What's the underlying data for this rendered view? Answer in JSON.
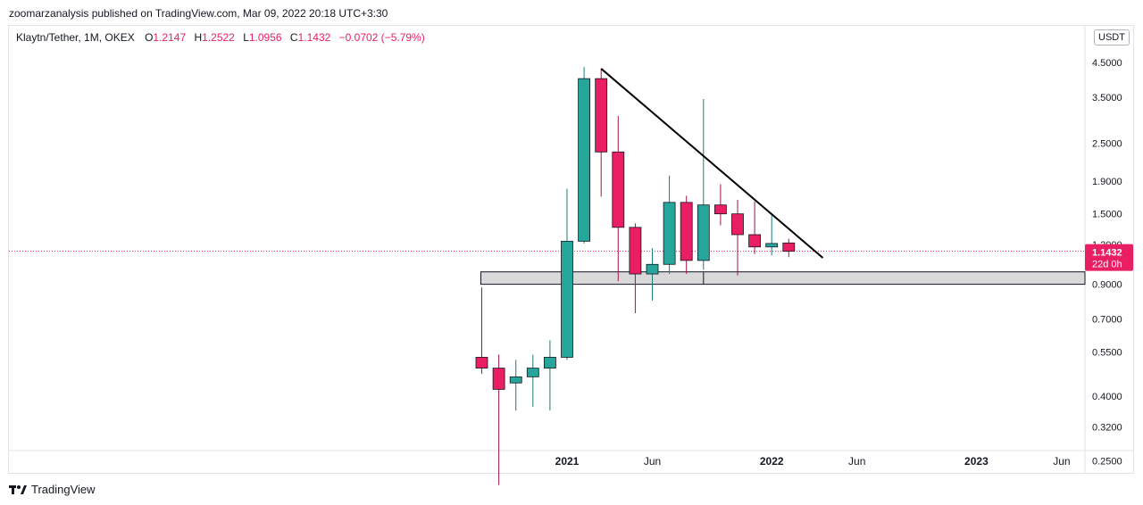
{
  "header": {
    "publish_line": "zoomarzanalysis published on TradingView.com, Mar 09, 2022 20:18 UTC+3:30"
  },
  "legend": {
    "symbol": "Klaytn/Tether, 1M, OKEX",
    "open_label": "O",
    "open": "1.2147",
    "high_label": "H",
    "high": "1.2522",
    "low_label": "L",
    "low": "1.0956",
    "close_label": "C",
    "close": "1.1432",
    "change": "−0.0702 (−5.79%)"
  },
  "currency": "USDT",
  "footer": {
    "brand": "TradingView"
  },
  "colors": {
    "up": "#26a69a",
    "down": "#e91e63",
    "line": "#000000",
    "zone": "#d9d9d9"
  },
  "chart_data": {
    "type": "candlestick",
    "title": "",
    "xlabel": "",
    "ylabel": "",
    "y_scale": "log",
    "ylim": [
      0.22,
      5.5
    ],
    "y_ticks": [
      4.5,
      3.5,
      2.5,
      1.9,
      1.5,
      1.2,
      0.9,
      0.7,
      0.55,
      0.4,
      0.32,
      0.25
    ],
    "y_tick_labels": [
      "4.5000",
      "3.5000",
      "2.5000",
      "1.9000",
      "1.5000",
      "1.2000",
      "0.9000",
      "0.7000",
      "0.5500",
      "0.4000",
      "0.3200",
      "0.2500"
    ],
    "x_ticks": [
      {
        "date": "2021-01",
        "label": "2021",
        "bold": true
      },
      {
        "date": "2021-06",
        "label": "Jun",
        "bold": false
      },
      {
        "date": "2022-01",
        "label": "2022",
        "bold": true
      },
      {
        "date": "2022-06",
        "label": "Jun",
        "bold": false
      },
      {
        "date": "2023-01",
        "label": "2023",
        "bold": true
      },
      {
        "date": "2023-06",
        "label": "Jun",
        "bold": false
      }
    ],
    "candles": [
      {
        "date": "2020-08",
        "open": 0.53,
        "high": 0.88,
        "low": 0.47,
        "close": 0.49
      },
      {
        "date": "2020-09",
        "open": 0.49,
        "high": 0.54,
        "low": 0.21,
        "close": 0.42
      },
      {
        "date": "2020-10",
        "open": 0.44,
        "high": 0.52,
        "low": 0.36,
        "close": 0.46
      },
      {
        "date": "2020-11",
        "open": 0.46,
        "high": 0.54,
        "low": 0.37,
        "close": 0.49
      },
      {
        "date": "2020-12",
        "open": 0.49,
        "high": 0.6,
        "low": 0.36,
        "close": 0.53
      },
      {
        "date": "2021-01",
        "open": 0.53,
        "high": 1.8,
        "low": 0.52,
        "close": 1.23
      },
      {
        "date": "2021-02",
        "open": 1.23,
        "high": 4.35,
        "low": 1.21,
        "close": 4.0
      },
      {
        "date": "2021-03",
        "open": 4.0,
        "high": 4.3,
        "low": 1.7,
        "close": 2.35
      },
      {
        "date": "2021-04",
        "open": 2.35,
        "high": 3.05,
        "low": 0.92,
        "close": 1.36
      },
      {
        "date": "2021-05",
        "open": 1.36,
        "high": 1.4,
        "low": 0.73,
        "close": 0.97
      },
      {
        "date": "2021-06",
        "open": 0.97,
        "high": 1.17,
        "low": 0.8,
        "close": 1.04
      },
      {
        "date": "2021-07",
        "open": 1.04,
        "high": 1.98,
        "low": 0.97,
        "close": 1.63
      },
      {
        "date": "2021-08",
        "open": 1.63,
        "high": 1.71,
        "low": 0.97,
        "close": 1.07
      },
      {
        "date": "2021-09",
        "open": 1.07,
        "high": 3.45,
        "low": 1.0,
        "close": 1.6
      },
      {
        "date": "2021-10",
        "open": 1.6,
        "high": 1.86,
        "low": 1.38,
        "close": 1.5
      },
      {
        "date": "2021-11",
        "open": 1.5,
        "high": 1.66,
        "low": 0.96,
        "close": 1.29
      },
      {
        "date": "2021-12",
        "open": 1.29,
        "high": 1.64,
        "low": 1.12,
        "close": 1.18
      },
      {
        "date": "2022-01",
        "open": 1.18,
        "high": 1.48,
        "low": 1.11,
        "close": 1.21
      },
      {
        "date": "2022-02",
        "open": 1.2147,
        "high": 1.2522,
        "low": 1.0956,
        "close": 1.1432
      }
    ],
    "trendline": {
      "from": {
        "date": "2021-03",
        "price": 4.3
      },
      "to": {
        "date": "2022-04",
        "price": 1.09
      }
    },
    "support_zone": {
      "from_date": "2020-08",
      "price_low": 0.9,
      "price_high": 0.985,
      "divider_date": "2021-09"
    },
    "last_price": {
      "value": "1.1432",
      "countdown": "22d 0h"
    }
  }
}
